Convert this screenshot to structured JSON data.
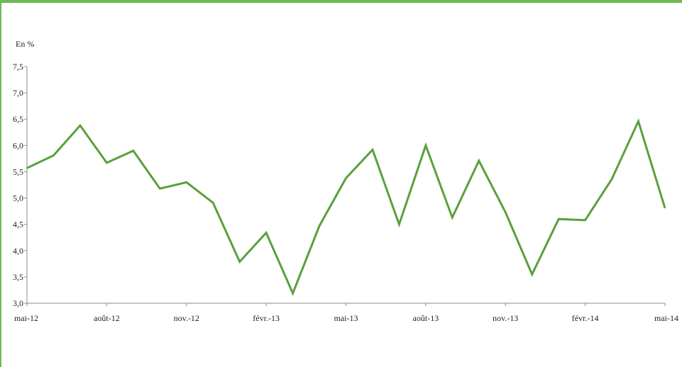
{
  "colors": {
    "series": "#5aa03c",
    "frame": "#6cbb54",
    "axis": "#8c8c8c",
    "text": "#222222"
  },
  "chart_data": {
    "type": "line",
    "ylabel": "En %",
    "ylim": [
      3.0,
      7.5
    ],
    "y_ticks": [
      "3,0",
      "3,5",
      "4,0",
      "4,5",
      "5,0",
      "5,5",
      "6,0",
      "6,5",
      "7,0",
      "7,5"
    ],
    "x_tick_labels": [
      "mai-12",
      "août-12",
      "nov.-12",
      "févr.-13",
      "mai-13",
      "août-13",
      "nov.-13",
      "févr.-14",
      "mai-14"
    ],
    "grid": false,
    "series": [
      {
        "x": [
          "2012-05",
          "2012-06",
          "2012-07",
          "2012-08",
          "2012-09",
          "2012-10",
          "2012-11",
          "2012-12",
          "2013-01",
          "2013-02",
          "2013-03",
          "2013-04",
          "2013-05",
          "2013-06",
          "2013-07",
          "2013-08",
          "2013-09",
          "2013-10",
          "2013-11",
          "2013-12",
          "2014-01",
          "2014-02",
          "2014-03",
          "2014-04",
          "2014-05"
        ],
        "values": [
          5.57,
          5.81,
          6.38,
          5.67,
          5.9,
          5.18,
          5.3,
          4.91,
          3.79,
          4.34,
          3.19,
          4.47,
          5.38,
          5.92,
          4.5,
          6.0,
          4.63,
          5.71,
          4.73,
          3.55,
          4.6,
          4.58,
          5.36,
          6.46,
          4.81
        ]
      }
    ]
  }
}
